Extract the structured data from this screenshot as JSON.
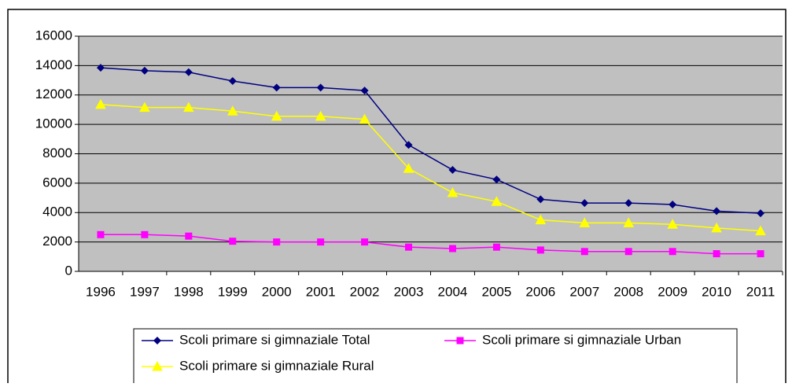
{
  "chart_data": {
    "type": "line",
    "categories": [
      "1996",
      "1997",
      "1998",
      "1999",
      "2000",
      "2001",
      "2002",
      "2003",
      "2004",
      "2005",
      "2006",
      "2007",
      "2008",
      "2009",
      "2010",
      "2011"
    ],
    "series": [
      {
        "name": "Scoli primare si gimnaziale Total",
        "color": "#000080",
        "marker": "diamond",
        "values": [
          13850,
          13650,
          13550,
          12950,
          12500,
          12500,
          12300,
          8600,
          6900,
          6250,
          4900,
          4650,
          4650,
          4550,
          4100,
          3950
        ]
      },
      {
        "name": "Scoli primare si gimnaziale Urban",
        "color": "#FF00FF",
        "marker": "square",
        "values": [
          2500,
          2500,
          2400,
          2050,
          2000,
          2000,
          2000,
          1650,
          1550,
          1650,
          1450,
          1350,
          1350,
          1350,
          1200,
          1200
        ]
      },
      {
        "name": "Scoli primare si gimnaziale Rural",
        "color": "#FFFF00",
        "marker": "triangle",
        "values": [
          11350,
          11150,
          11150,
          10900,
          10550,
          10550,
          10350,
          7000,
          5350,
          4750,
          3500,
          3300,
          3300,
          3200,
          2950,
          2750
        ]
      }
    ],
    "ylim": [
      0,
      16000
    ],
    "yticks": [
      0,
      2000,
      4000,
      6000,
      8000,
      10000,
      12000,
      14000,
      16000
    ],
    "grid": true
  }
}
